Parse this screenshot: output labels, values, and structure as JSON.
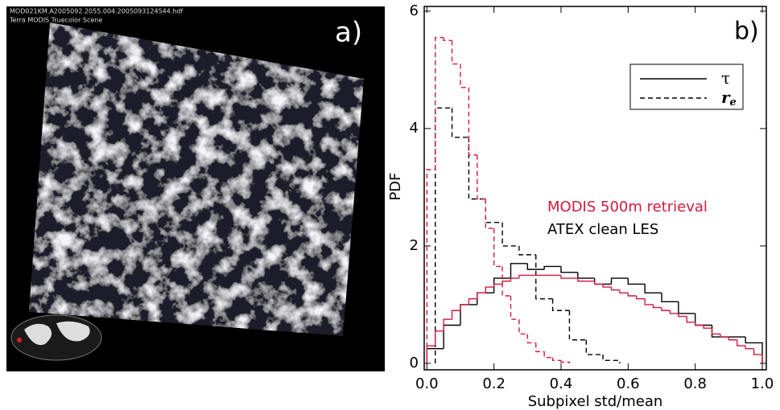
{
  "image_panel": {
    "filename": "MOD021KM.A2005092.2055.004.2005093124544.hdf",
    "caption": "Terra MODIS Truecolor Scene",
    "panel_label": "a)"
  },
  "chart_data": {
    "type": "histogram",
    "panel_label": "b)",
    "xlabel": "Subpixel std/mean",
    "ylabel": "PDF",
    "xlim": [
      -0.008,
      1.012
    ],
    "ylim": [
      -0.11,
      6.08
    ],
    "xticks": [
      {
        "value": 0,
        "label": "0.0"
      },
      {
        "value": 0.2,
        "label": "0.2"
      },
      {
        "value": 0.4,
        "label": "0.4"
      },
      {
        "value": 0.6,
        "label": "0.6"
      },
      {
        "value": 0.8,
        "label": "0.8"
      },
      {
        "value": 1,
        "label": "1.0"
      }
    ],
    "yticks": [
      0,
      2,
      4,
      6
    ],
    "series": [
      {
        "color": "#000000",
        "dash": false,
        "bins": [
          0,
          0.05,
          0.1,
          0.15,
          0.2,
          0.25,
          0.3,
          0.35,
          0.4,
          0.45,
          0.5,
          0.55,
          0.6,
          0.65,
          0.7,
          0.75,
          0.8,
          0.85,
          0.9,
          0.95,
          1
        ],
        "values": [
          0.25,
          0.65,
          1.0,
          1.2,
          1.45,
          1.7,
          1.6,
          1.65,
          1.55,
          1.45,
          1.35,
          1.45,
          1.35,
          1.2,
          1.05,
          0.85,
          0.65,
          0.45,
          0.45,
          0.35
        ]
      },
      {
        "color": "#000000",
        "dash": true,
        "bins": [
          0.025,
          0.075,
          0.125,
          0.175,
          0.225,
          0.275,
          0.325,
          0.375,
          0.425,
          0.475,
          0.525,
          0.575
        ],
        "values": [
          4.35,
          3.85,
          2.8,
          2.4,
          2.0,
          1.85,
          1.1,
          0.9,
          0.4,
          0.15,
          0.05
        ]
      },
      {
        "color": "#d4193c",
        "dash": false,
        "bins": [
          0,
          0.025,
          0.05,
          0.075,
          0.1,
          0.125,
          0.15,
          0.175,
          0.2,
          0.225,
          0.25,
          0.275,
          0.3,
          0.325,
          0.35,
          0.375,
          0.4,
          0.425,
          0.45,
          0.475,
          0.5,
          0.525,
          0.55,
          0.575,
          0.6,
          0.625,
          0.65,
          0.675,
          0.7,
          0.725,
          0.75,
          0.775,
          0.8,
          0.825,
          0.85,
          0.875,
          0.9,
          0.925,
          0.95,
          0.975,
          1
        ],
        "values": [
          0.3,
          0.55,
          0.75,
          0.9,
          1.0,
          1.1,
          1.2,
          1.3,
          1.35,
          1.4,
          1.45,
          1.5,
          1.5,
          1.5,
          1.5,
          1.5,
          1.45,
          1.45,
          1.4,
          1.4,
          1.35,
          1.3,
          1.25,
          1.2,
          1.15,
          1.1,
          1.0,
          0.95,
          0.9,
          0.85,
          0.8,
          0.7,
          0.65,
          0.6,
          0.5,
          0.45,
          0.4,
          0.3,
          0.25,
          0.15
        ]
      },
      {
        "color": "#d4193c",
        "dash": true,
        "bins": [
          0,
          0.025,
          0.05,
          0.075,
          0.1,
          0.125,
          0.15,
          0.175,
          0.2,
          0.225,
          0.25,
          0.275,
          0.3,
          0.325,
          0.35,
          0.375,
          0.4,
          0.425
        ],
        "values": [
          3.3,
          5.55,
          5.5,
          5.1,
          4.7,
          3.55,
          2.8,
          2.3,
          1.65,
          1.15,
          0.75,
          0.5,
          0.35,
          0.2,
          0.1,
          0.05,
          0.02
        ]
      }
    ],
    "legend": [
      {
        "label": "τ",
        "dash": false
      },
      {
        "label": "r",
        "subscript": "e",
        "dash": true
      }
    ],
    "annotations": [
      {
        "text": "MODIS 500m retrieval",
        "color": "#d4193c"
      },
      {
        "text": "ATEX clean LES",
        "color": "#000000"
      }
    ]
  }
}
